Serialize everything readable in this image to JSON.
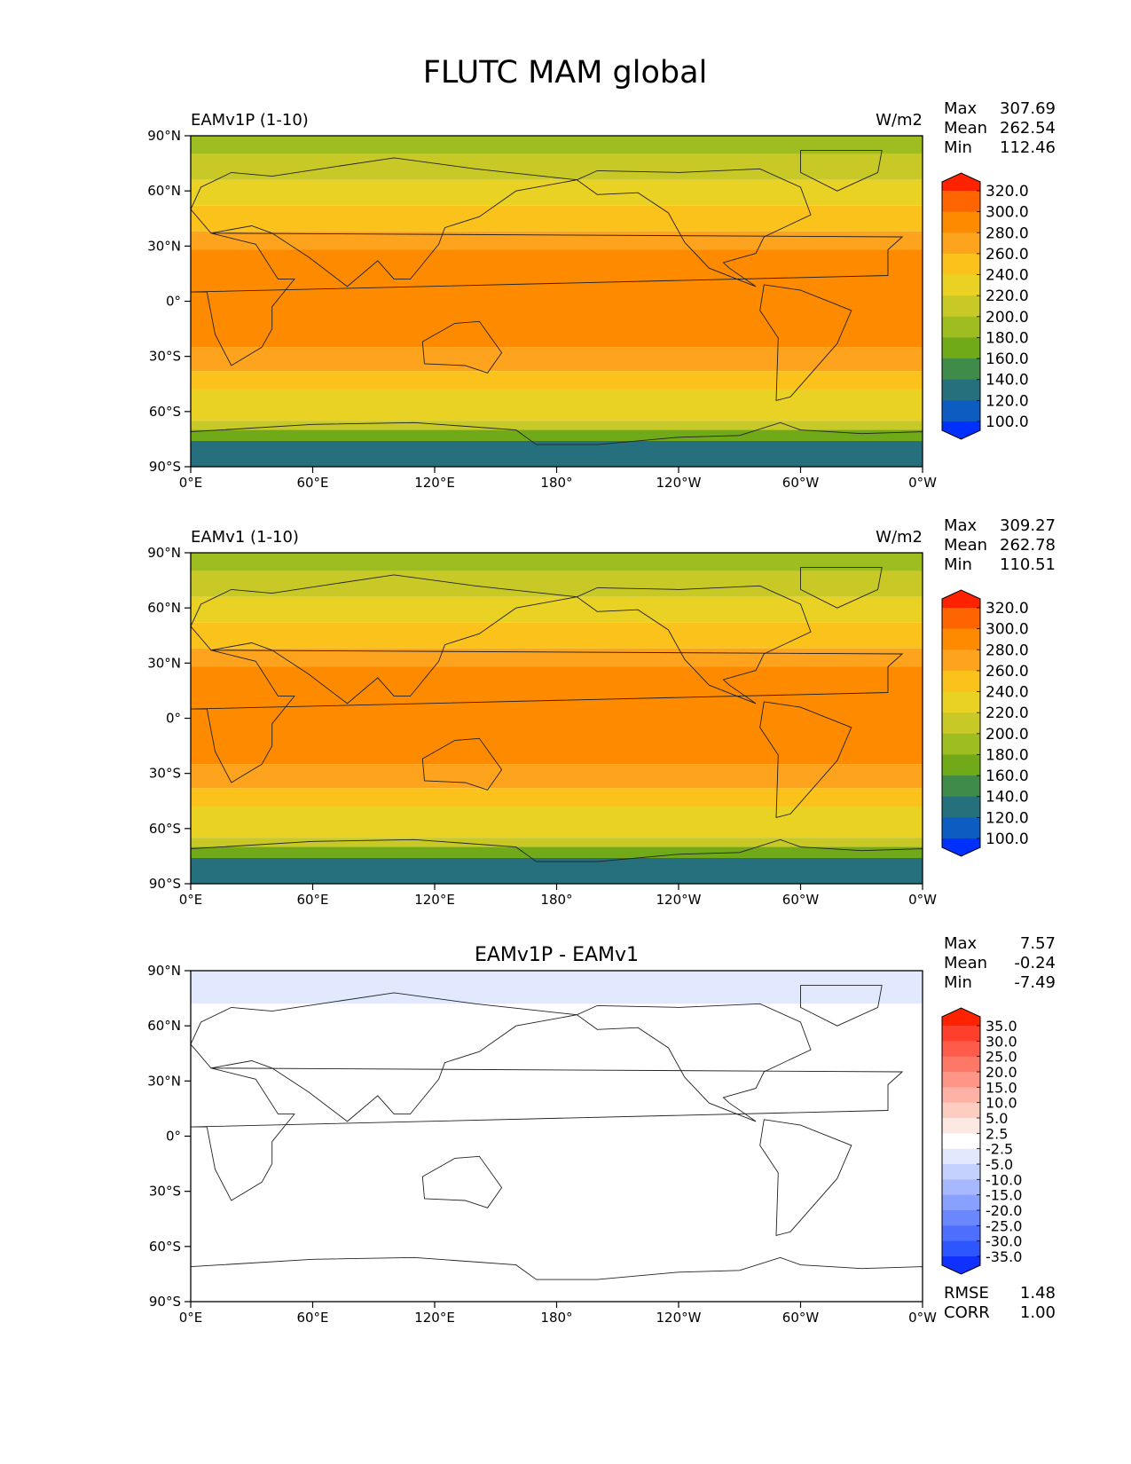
{
  "chart_data": {
    "type": "heatmap",
    "title": "FLUTC MAM global",
    "x_ticks": [
      "0°E",
      "60°E",
      "120°E",
      "180°",
      "120°W",
      "60°W",
      "0°W"
    ],
    "y_ticks": [
      "90°N",
      "60°N",
      "30°N",
      "0°",
      "30°S",
      "60°S",
      "90°S"
    ],
    "xlim": [
      0,
      360
    ],
    "ylim": [
      -90,
      90
    ],
    "panels": [
      {
        "id": "test",
        "left_title": "EAMv1P (1-10)",
        "center_title": "",
        "units": "W/m2",
        "stats": [
          {
            "label": "Max",
            "value": "307.69"
          },
          {
            "label": "Mean",
            "value": "262.54"
          },
          {
            "label": "Min",
            "value": "112.46"
          }
        ],
        "colorbar": {
          "labels": [
            "320.0",
            "300.0",
            "280.0",
            "260.0",
            "240.0",
            "220.0",
            "200.0",
            "180.0",
            "160.0",
            "140.0",
            "120.0",
            "100.0"
          ],
          "colors": [
            "#fe2200",
            "#fe6400",
            "#fe8a00",
            "#fea31e",
            "#fbc21c",
            "#ead225",
            "#c8c927",
            "#9ebd21",
            "#71aa18",
            "#3f8b4a",
            "#26707e",
            "#0d5cc2",
            "#0030fe"
          ]
        },
        "bands": [
          {
            "lat_top": 90,
            "lat_bot": 80,
            "color": "#9ebd21"
          },
          {
            "lat_top": 80,
            "lat_bot": 66,
            "color": "#c8c927"
          },
          {
            "lat_top": 66,
            "lat_bot": 52,
            "color": "#ead225"
          },
          {
            "lat_top": 52,
            "lat_bot": 38,
            "color": "#fbc21c"
          },
          {
            "lat_top": 38,
            "lat_bot": 28,
            "color": "#fea31e"
          },
          {
            "lat_top": 28,
            "lat_bot": -25,
            "color": "#fe8a00"
          },
          {
            "lat_top": -25,
            "lat_bot": -38,
            "color": "#fea31e"
          },
          {
            "lat_top": -38,
            "lat_bot": -48,
            "color": "#fbc21c"
          },
          {
            "lat_top": -48,
            "lat_bot": -65,
            "color": "#ead225"
          },
          {
            "lat_top": -65,
            "lat_bot": -70,
            "color": "#c8c927"
          },
          {
            "lat_top": -70,
            "lat_bot": -76,
            "color": "#71aa18"
          },
          {
            "lat_top": -76,
            "lat_bot": -90,
            "color": "#26707e"
          }
        ],
        "rmse": null
      },
      {
        "id": "reference",
        "left_title": "EAMv1 (1-10)",
        "center_title": "",
        "units": "W/m2",
        "stats": [
          {
            "label": "Max",
            "value": "309.27"
          },
          {
            "label": "Mean",
            "value": "262.78"
          },
          {
            "label": "Min",
            "value": "110.51"
          }
        ],
        "colorbar": {
          "labels": [
            "320.0",
            "300.0",
            "280.0",
            "260.0",
            "240.0",
            "220.0",
            "200.0",
            "180.0",
            "160.0",
            "140.0",
            "120.0",
            "100.0"
          ],
          "colors": [
            "#fe2200",
            "#fe6400",
            "#fe8a00",
            "#fea31e",
            "#fbc21c",
            "#ead225",
            "#c8c927",
            "#9ebd21",
            "#71aa18",
            "#3f8b4a",
            "#26707e",
            "#0d5cc2",
            "#0030fe"
          ]
        },
        "bands": [
          {
            "lat_top": 90,
            "lat_bot": 80,
            "color": "#9ebd21"
          },
          {
            "lat_top": 80,
            "lat_bot": 66,
            "color": "#c8c927"
          },
          {
            "lat_top": 66,
            "lat_bot": 52,
            "color": "#ead225"
          },
          {
            "lat_top": 52,
            "lat_bot": 38,
            "color": "#fbc21c"
          },
          {
            "lat_top": 38,
            "lat_bot": 28,
            "color": "#fea31e"
          },
          {
            "lat_top": 28,
            "lat_bot": -25,
            "color": "#fe8a00"
          },
          {
            "lat_top": -25,
            "lat_bot": -38,
            "color": "#fea31e"
          },
          {
            "lat_top": -38,
            "lat_bot": -48,
            "color": "#fbc21c"
          },
          {
            "lat_top": -48,
            "lat_bot": -65,
            "color": "#ead225"
          },
          {
            "lat_top": -65,
            "lat_bot": -70,
            "color": "#c8c927"
          },
          {
            "lat_top": -70,
            "lat_bot": -76,
            "color": "#71aa18"
          },
          {
            "lat_top": -76,
            "lat_bot": -90,
            "color": "#26707e"
          }
        ],
        "rmse": null
      },
      {
        "id": "difference",
        "left_title": "",
        "center_title": "EAMv1P - EAMv1",
        "units": "",
        "stats": [
          {
            "label": "Max",
            "value": "7.57"
          },
          {
            "label": "Mean",
            "value": "-0.24"
          },
          {
            "label": "Min",
            "value": "-7.49"
          }
        ],
        "colorbar": {
          "labels": [
            "35.0",
            "30.0",
            "25.0",
            "20.0",
            "15.0",
            "10.0",
            "5.0",
            "2.5",
            "-2.5",
            "-5.0",
            "-10.0",
            "-15.0",
            "-20.0",
            "-25.0",
            "-30.0",
            "-35.0"
          ],
          "colors": [
            "#fe2200",
            "#fe3f2b",
            "#fe5b4a",
            "#fe7868",
            "#fe9586",
            "#feb1a4",
            "#fecdc2",
            "#fee9e2",
            "#ffffff",
            "#e2e9fe",
            "#c4d1fe",
            "#a6b8fe",
            "#88a0fe",
            "#6a87fe",
            "#4c6ffe",
            "#2e56fe",
            "#1030fe"
          ]
        },
        "bands": [
          {
            "lat_top": 90,
            "lat_bot": 72,
            "color": "#e2e9fe"
          },
          {
            "lat_top": 72,
            "lat_bot": -70,
            "color": "#ffffff"
          },
          {
            "lat_top": -70,
            "lat_bot": -90,
            "color": "#ffffff"
          }
        ],
        "rmse": [
          {
            "label": "RMSE",
            "value": "1.48"
          },
          {
            "label": "CORR",
            "value": "1.00"
          }
        ]
      }
    ]
  }
}
